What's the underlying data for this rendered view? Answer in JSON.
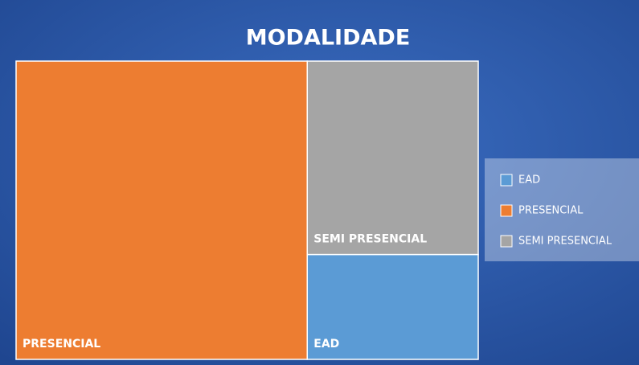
{
  "chart_data": {
    "type": "treemap",
    "title": "MODALIDADE",
    "categories": [
      "EAD",
      "PRESENCIAL",
      "SEMI PRESENCIAL"
    ],
    "values": [
      13,
      63,
      24
    ],
    "colors": [
      "#5b9bd5",
      "#ed7d31",
      "#a5a5a5"
    ],
    "legend": "right"
  }
}
